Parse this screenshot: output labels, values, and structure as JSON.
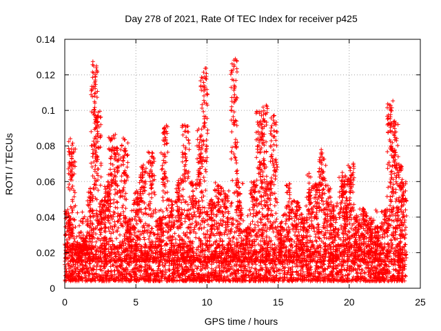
{
  "chart_data": {
    "type": "scatter",
    "title": "Day 278 of 2021, Rate Of TEC Index for receiver p425",
    "xlabel": "GPS time / hours",
    "ylabel": "ROTI / TECUs",
    "xlim": [
      0,
      25
    ],
    "ylim": [
      0,
      0.14
    ],
    "x_ticks": [
      0,
      5,
      10,
      15,
      20,
      25
    ],
    "y_ticks": [
      0,
      0.02,
      0.04,
      0.06,
      0.08,
      0.1,
      0.12,
      0.14
    ],
    "x_tick_labels": [
      "0",
      "5",
      "10",
      "15",
      "20",
      "25"
    ],
    "y_tick_labels": [
      "0",
      "0.02",
      "0.04",
      "0.06",
      "0.08",
      "0.1",
      "0.12",
      "0.14"
    ],
    "grid": true,
    "marker": "+",
    "color": "#ff0000",
    "series": [
      {
        "name": "ROTI",
        "x_range": [
          0,
          24
        ],
        "baseline_range": [
          0.004,
          0.025
        ],
        "spikes": [
          {
            "x": 0.3,
            "y": 0.045
          },
          {
            "x": 0.5,
            "y": 0.085
          },
          {
            "x": 1.0,
            "y": 0.025
          },
          {
            "x": 1.5,
            "y": 0.03
          },
          {
            "x": 1.8,
            "y": 0.057
          },
          {
            "x": 2.1,
            "y": 0.128
          },
          {
            "x": 2.3,
            "y": 0.1
          },
          {
            "x": 2.6,
            "y": 0.05
          },
          {
            "x": 3.0,
            "y": 0.06
          },
          {
            "x": 3.3,
            "y": 0.087
          },
          {
            "x": 3.7,
            "y": 0.08
          },
          {
            "x": 4.2,
            "y": 0.085
          },
          {
            "x": 4.6,
            "y": 0.04
          },
          {
            "x": 5.1,
            "y": 0.055
          },
          {
            "x": 5.5,
            "y": 0.07
          },
          {
            "x": 6.1,
            "y": 0.078
          },
          {
            "x": 6.7,
            "y": 0.04
          },
          {
            "x": 7.0,
            "y": 0.092
          },
          {
            "x": 7.5,
            "y": 0.05
          },
          {
            "x": 8.0,
            "y": 0.062
          },
          {
            "x": 8.5,
            "y": 0.092
          },
          {
            "x": 9.0,
            "y": 0.06
          },
          {
            "x": 9.5,
            "y": 0.09
          },
          {
            "x": 9.8,
            "y": 0.125
          },
          {
            "x": 10.3,
            "y": 0.05
          },
          {
            "x": 10.8,
            "y": 0.06
          },
          {
            "x": 11.3,
            "y": 0.055
          },
          {
            "x": 11.9,
            "y": 0.129
          },
          {
            "x": 12.3,
            "y": 0.06
          },
          {
            "x": 12.8,
            "y": 0.035
          },
          {
            "x": 13.3,
            "y": 0.06
          },
          {
            "x": 13.7,
            "y": 0.1
          },
          {
            "x": 14.0,
            "y": 0.105
          },
          {
            "x": 14.3,
            "y": 0.06
          },
          {
            "x": 14.7,
            "y": 0.098
          },
          {
            "x": 15.2,
            "y": 0.035
          },
          {
            "x": 15.8,
            "y": 0.059
          },
          {
            "x": 16.3,
            "y": 0.05
          },
          {
            "x": 16.8,
            "y": 0.04
          },
          {
            "x": 17.2,
            "y": 0.065
          },
          {
            "x": 17.7,
            "y": 0.06
          },
          {
            "x": 18.1,
            "y": 0.078
          },
          {
            "x": 18.5,
            "y": 0.058
          },
          {
            "x": 18.9,
            "y": 0.048
          },
          {
            "x": 19.5,
            "y": 0.066
          },
          {
            "x": 19.8,
            "y": 0.055
          },
          {
            "x": 20.1,
            "y": 0.071
          },
          {
            "x": 20.5,
            "y": 0.04
          },
          {
            "x": 21.0,
            "y": 0.045
          },
          {
            "x": 21.5,
            "y": 0.04
          },
          {
            "x": 22.0,
            "y": 0.035
          },
          {
            "x": 22.5,
            "y": 0.045
          },
          {
            "x": 22.9,
            "y": 0.106
          },
          {
            "x": 23.2,
            "y": 0.096
          },
          {
            "x": 23.5,
            "y": 0.07
          },
          {
            "x": 23.8,
            "y": 0.06
          }
        ]
      }
    ]
  }
}
